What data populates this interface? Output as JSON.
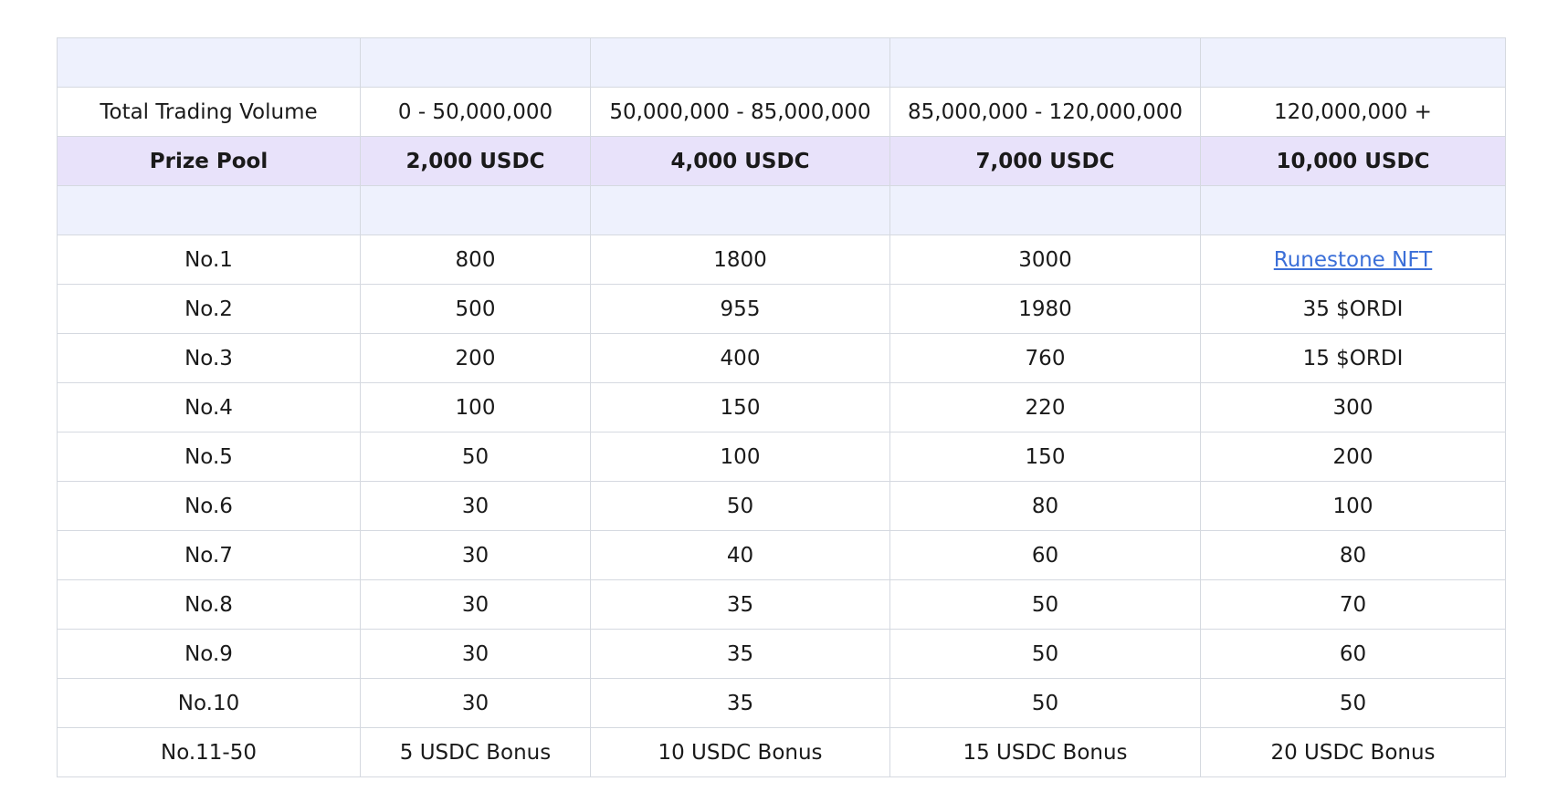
{
  "table": {
    "volume_row": {
      "label": "Total Trading Volume",
      "tiers": [
        "0 - 50,000,000",
        "50,000,000 - 85,000,000",
        "85,000,000 - 120,000,000",
        "120,000,000 +"
      ]
    },
    "pool_row": {
      "label": "Prize Pool",
      "tiers": [
        "2,000 USDC",
        "4,000 USDC",
        "7,000 USDC",
        "10,000 USDC"
      ]
    },
    "rank_rows": [
      {
        "rank": "No.1",
        "values": [
          "800",
          "1800",
          "3000",
          "Runestone NFT"
        ]
      },
      {
        "rank": "No.2",
        "values": [
          "500",
          "955",
          "1980",
          "35 $ORDI"
        ]
      },
      {
        "rank": "No.3",
        "values": [
          "200",
          "400",
          "760",
          "15 $ORDI"
        ]
      },
      {
        "rank": "No.4",
        "values": [
          "100",
          "150",
          "220",
          "300"
        ]
      },
      {
        "rank": "No.5",
        "values": [
          "50",
          "100",
          "150",
          "200"
        ]
      },
      {
        "rank": "No.6",
        "values": [
          "30",
          "50",
          "80",
          "100"
        ]
      },
      {
        "rank": "No.7",
        "values": [
          "30",
          "40",
          "60",
          "80"
        ]
      },
      {
        "rank": "No.8",
        "values": [
          "30",
          "35",
          "50",
          "70"
        ]
      },
      {
        "rank": "No.9",
        "values": [
          "30",
          "35",
          "50",
          "60"
        ]
      },
      {
        "rank": "No.10",
        "values": [
          "30",
          "35",
          "50",
          "50"
        ]
      },
      {
        "rank": "No.11-50",
        "values": [
          "5 USDC Bonus",
          "10 USDC Bonus",
          "15 USDC Bonus",
          "20 USDC Bonus"
        ]
      }
    ]
  },
  "colors": {
    "spacer_bg": "#eef1fd",
    "pool_bg": "#e8e2fa",
    "link": "#3b6fd8",
    "border": "#d5d9e0"
  }
}
